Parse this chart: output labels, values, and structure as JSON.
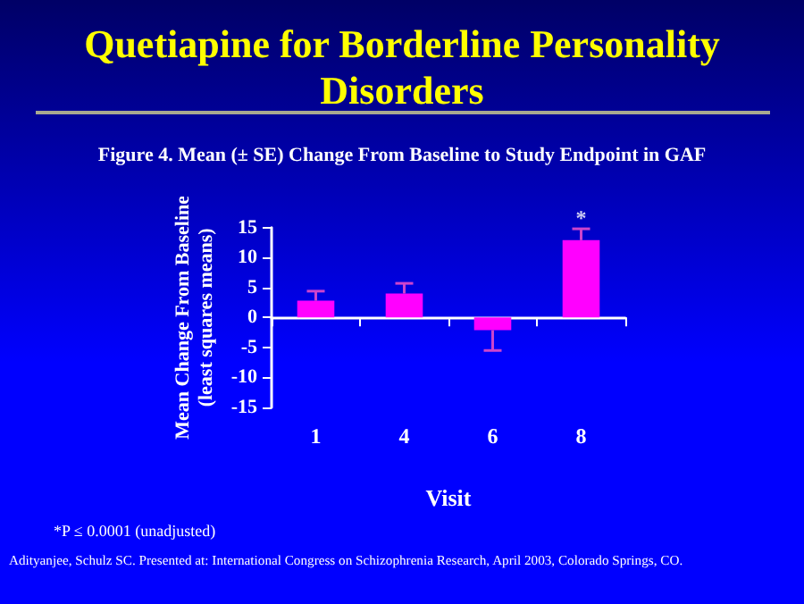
{
  "chart_data": {
    "type": "bar",
    "title": "Quetiapine for Borderline Personality Disorders",
    "subtitle": "Figure 4. Mean (± SE) Change From Baseline to Study Endpoint in GAF",
    "xlabel": "Visit",
    "ylabel": "Mean Change From Baseline\n(least squares means)",
    "categories": [
      "1",
      "4",
      "6",
      "8"
    ],
    "values": [
      2.8,
      4.0,
      -2.1,
      12.9
    ],
    "errors": [
      [
        2.8,
        4.4
      ],
      [
        4.0,
        5.7
      ],
      [
        -5.5,
        -2.1
      ],
      [
        12.9,
        14.8
      ]
    ],
    "color": "#ff00ff",
    "ylim": [
      -15,
      15
    ],
    "yticks": [
      -15,
      -10,
      -5,
      0,
      5,
      10,
      15
    ],
    "annotations": [
      {
        "text": "*",
        "x": "8",
        "y": 14.8
      },
      "*P ≤ 0.0001 (unadjusted)",
      "Adityanjee, Schulz SC. Presented at: International Congress on Schizophrenia Research, April 2003, Colorado Springs, CO."
    ]
  }
}
